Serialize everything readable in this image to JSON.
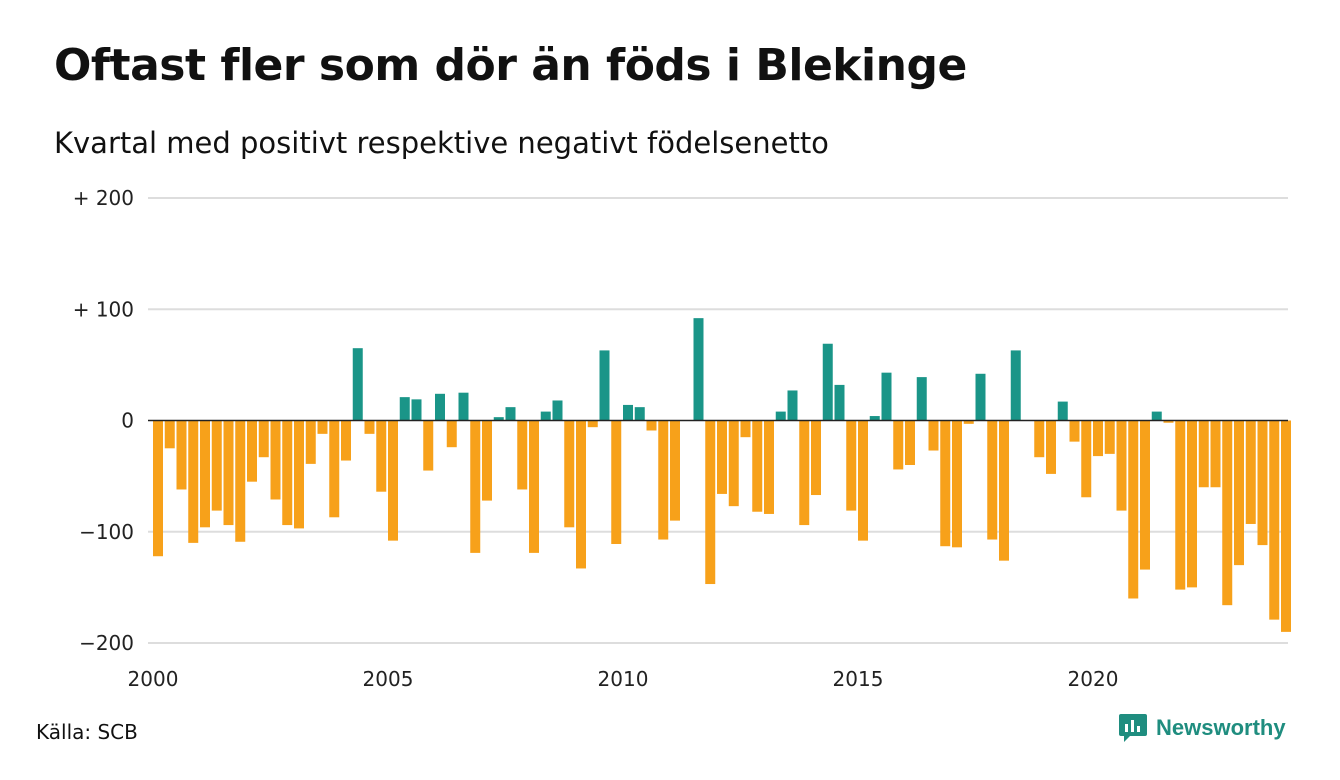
{
  "title": "Oftast fler som dör än föds i Blekinge",
  "subtitle": "Kvartal med positivt respektive negativt födelsenetto",
  "source": "Källa: SCB",
  "brand": {
    "name": "Newsworthy",
    "icon": "newsworthy-logo-icon"
  },
  "colors": {
    "positive": "#1a9588",
    "negative": "#f7a11a",
    "grid": "#dddddd",
    "axis": "#222222"
  },
  "chart_data": {
    "type": "bar",
    "title": "Oftast fler som dör än föds i Blekinge",
    "subtitle": "Kvartal med positivt respektive negativt födelsenetto",
    "xlabel": "",
    "ylabel": "",
    "ylim": [
      -200,
      200
    ],
    "grid": true,
    "y_ticks": [
      {
        "value": 200,
        "label": "+ 200"
      },
      {
        "value": 100,
        "label": "+ 100"
      },
      {
        "value": 0,
        "label": "0"
      },
      {
        "value": -100,
        "label": "−100"
      },
      {
        "value": -200,
        "label": "−200"
      }
    ],
    "x_ticks": [
      {
        "quarter_index": 0,
        "label": "2000"
      },
      {
        "quarter_index": 20,
        "label": "2005"
      },
      {
        "quarter_index": 40,
        "label": "2010"
      },
      {
        "quarter_index": 60,
        "label": "2015"
      },
      {
        "quarter_index": 80,
        "label": "2020"
      }
    ],
    "start": "2000 Q1",
    "values": [
      -122,
      -25,
      -62,
      -110,
      -96,
      -81,
      -94,
      -109,
      -55,
      -33,
      -71,
      -94,
      -97,
      -39,
      -12,
      -87,
      -36,
      65,
      -12,
      -64,
      -108,
      21,
      19,
      -45,
      24,
      -24,
      25,
      -119,
      -72,
      3,
      12,
      -62,
      -119,
      8,
      18,
      -96,
      -133,
      -6,
      63,
      -111,
      14,
      12,
      -9,
      -107,
      -90,
      0,
      92,
      -147,
      -66,
      -77,
      -15,
      -82,
      -84,
      8,
      27,
      -94,
      -67,
      69,
      32,
      -81,
      -108,
      4,
      43,
      -44,
      -40,
      39,
      -27,
      -113,
      -114,
      -3,
      42,
      -107,
      -126,
      63,
      0,
      -33,
      -48,
      17,
      -19,
      -69,
      -32,
      -30,
      -81,
      -160,
      -134,
      8,
      -2,
      -152,
      -150,
      -60,
      -60,
      -166,
      -130,
      -93,
      -112,
      -179,
      -190
    ]
  }
}
